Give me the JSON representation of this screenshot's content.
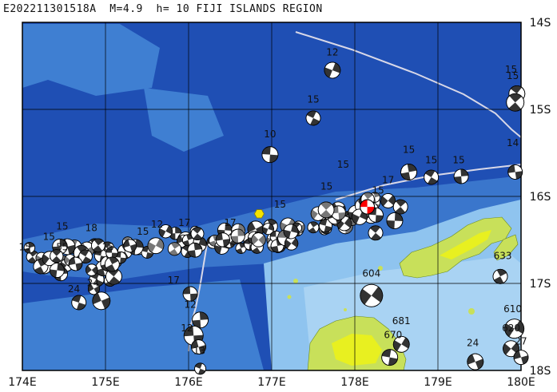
{
  "title": "E202211301518A  M=4.9  h= 10 FIJI ISLANDS REGION",
  "axes": {
    "lon_labels": [
      "174E",
      "175E",
      "176E",
      "177E",
      "178E",
      "179E",
      "180E"
    ],
    "lat_labels": [
      "14S",
      "15S",
      "16S",
      "17S",
      "18S"
    ],
    "lon_range": [
      174,
      180
    ],
    "lat_range": [
      -14,
      -18
    ]
  },
  "colors": {
    "deep_ocean": "#1f4fb4",
    "mid_ocean": "#3f7fd2",
    "shallow_ocean": "#8fc4ef",
    "land": "#c8e05a",
    "land_high": "#e8f020",
    "grid": "#000000",
    "plate_boundary": "#d8d8e8",
    "event": "#ff0000",
    "station": "#f4e400"
  },
  "event_marker": {
    "lon": 178.15,
    "lat": -16.12
  },
  "station_marker": {
    "lon": 176.85,
    "lat": -16.2
  },
  "depth_labels": [
    {
      "text": "12",
      "lon": 177.73,
      "lat": -14.38
    },
    {
      "text": "15",
      "lon": 177.5,
      "lat": -14.92
    },
    {
      "text": "10",
      "lon": 176.98,
      "lat": -15.32
    },
    {
      "text": "15",
      "lon": 179.88,
      "lat": -14.58
    },
    {
      "text": "15",
      "lon": 179.9,
      "lat": -14.65
    },
    {
      "text": "14",
      "lon": 179.9,
      "lat": -15.42
    },
    {
      "text": "15",
      "lon": 178.65,
      "lat": -15.5
    },
    {
      "text": "15",
      "lon": 178.92,
      "lat": -15.62
    },
    {
      "text": "15",
      "lon": 179.25,
      "lat": -15.62
    },
    {
      "text": "17",
      "lon": 178.4,
      "lat": -15.85
    },
    {
      "text": "15",
      "lon": 177.66,
      "lat": -15.92
    },
    {
      "text": "15",
      "lon": 177.86,
      "lat": -15.67
    },
    {
      "text": "15",
      "lon": 178.28,
      "lat": -15.97
    },
    {
      "text": "15",
      "lon": 177.1,
      "lat": -16.13
    },
    {
      "text": "17",
      "lon": 175.95,
      "lat": -16.34
    },
    {
      "text": "12",
      "lon": 175.62,
      "lat": -16.36
    },
    {
      "text": "17",
      "lon": 176.5,
      "lat": -16.34
    },
    {
      "text": "15",
      "lon": 174.48,
      "lat": -16.38
    },
    {
      "text": "15",
      "lon": 174.32,
      "lat": -16.5
    },
    {
      "text": "18",
      "lon": 174.83,
      "lat": -16.4
    },
    {
      "text": "15",
      "lon": 175.03,
      "lat": -16.62
    },
    {
      "text": "15",
      "lon": 175.45,
      "lat": -16.44
    },
    {
      "text": "15",
      "lon": 174.03,
      "lat": -16.62
    },
    {
      "text": "55",
      "lon": 174.48,
      "lat": -16.62
    },
    {
      "text": "24",
      "lon": 174.62,
      "lat": -17.1
    },
    {
      "text": "24",
      "lon": 174.85,
      "lat": -17.03
    },
    {
      "text": "17",
      "lon": 175.82,
      "lat": -17.0
    },
    {
      "text": "12",
      "lon": 176.02,
      "lat": -17.28
    },
    {
      "text": "12",
      "lon": 175.98,
      "lat": -17.55
    },
    {
      "text": "13",
      "lon": 176.13,
      "lat": -17.81
    },
    {
      "text": "604",
      "lon": 178.2,
      "lat": -16.92
    },
    {
      "text": "681",
      "lon": 178.56,
      "lat": -17.47
    },
    {
      "text": "670",
      "lon": 178.46,
      "lat": -17.63
    },
    {
      "text": "24",
      "lon": 179.42,
      "lat": -17.72
    },
    {
      "text": "610",
      "lon": 179.9,
      "lat": -17.33
    },
    {
      "text": "620",
      "lon": 179.88,
      "lat": -17.55
    },
    {
      "text": "27",
      "lon": 180.0,
      "lat": -17.7
    },
    {
      "text": "633",
      "lon": 179.78,
      "lat": -16.72
    }
  ]
}
